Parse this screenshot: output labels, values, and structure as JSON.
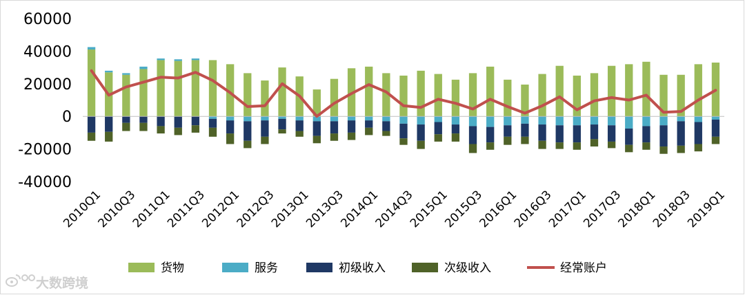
{
  "chart_data": {
    "type": "bar",
    "stacked": true,
    "categories": [
      "2010Q1",
      "2010Q2",
      "2010Q3",
      "2010Q4",
      "2011Q1",
      "2011Q2",
      "2011Q3",
      "2011Q4",
      "2012Q1",
      "2012Q2",
      "2012Q3",
      "2012Q4",
      "2013Q1",
      "2013Q2",
      "2013Q3",
      "2013Q4",
      "2014Q1",
      "2014Q2",
      "2014Q3",
      "2014Q4",
      "2015Q1",
      "2015Q2",
      "2015Q3",
      "2015Q4",
      "2016Q1",
      "2016Q2",
      "2016Q3",
      "2016Q4",
      "2017Q1",
      "2017Q2",
      "2017Q3",
      "2017Q4",
      "2018Q1",
      "2018Q2",
      "2018Q3",
      "2018Q4",
      "2019Q1"
    ],
    "tick_labels": [
      "2010Q1",
      "2010Q3",
      "2011Q1",
      "2011Q3",
      "2012Q1",
      "2012Q3",
      "2013Q1",
      "2013Q3",
      "2014Q1",
      "2014Q3",
      "2015Q1",
      "2015Q3",
      "2016Q1",
      "2016Q3",
      "2017Q1",
      "2017Q3",
      "2018Q1",
      "2018Q3",
      "2019Q1"
    ],
    "ylim": [
      -40000,
      60000
    ],
    "yticks": [
      "60000",
      "40000",
      "20000",
      "0",
      "-20000",
      "-40000"
    ],
    "series": [
      {
        "name": "货物",
        "type": "bar",
        "color": "#9BBB59",
        "values": [
          41000,
          27000,
          25500,
          29000,
          34500,
          34000,
          34500,
          34500,
          32000,
          26500,
          22000,
          30000,
          24500,
          16500,
          23000,
          29500,
          30500,
          26500,
          25000,
          28000,
          26000,
          22500,
          26500,
          30500,
          22500,
          19500,
          26000,
          31000,
          25000,
          26500,
          31000,
          32000,
          33500,
          25500,
          25500,
          32000,
          33000
        ]
      },
      {
        "name": "服务",
        "type": "bar",
        "color": "#4BACC6",
        "values": [
          1500,
          1000,
          1000,
          1500,
          1000,
          1000,
          1000,
          -1500,
          -2500,
          -3000,
          -2500,
          -1500,
          -2500,
          -3000,
          -3000,
          -2500,
          -2500,
          -3000,
          -4500,
          -5000,
          -3500,
          -5000,
          -6000,
          -6500,
          -5500,
          -4500,
          -5000,
          -5500,
          -5500,
          -5000,
          -5500,
          -7500,
          -6000,
          -5500,
          -3000,
          -3500,
          -2000
        ]
      },
      {
        "name": "初级收入",
        "type": "bar",
        "color": "#1F3864",
        "values": [
          -10000,
          -9500,
          -4000,
          -4000,
          -6000,
          -7000,
          -5500,
          -5500,
          -8000,
          -12000,
          -10000,
          -6500,
          -6500,
          -9000,
          -7500,
          -7500,
          -4500,
          -6000,
          -9000,
          -10000,
          -7500,
          -5500,
          -11000,
          -9500,
          -7000,
          -8000,
          -10000,
          -10500,
          -10500,
          -9000,
          -10000,
          -10000,
          -10000,
          -13000,
          -15000,
          -13500,
          -10500
        ]
      },
      {
        "name": "次级收入",
        "type": "bar",
        "color": "#4F6228",
        "values": [
          -5000,
          -6000,
          -5000,
          -5000,
          -4500,
          -4500,
          -4500,
          -5500,
          -6500,
          -4500,
          -4500,
          -2500,
          -3500,
          -4500,
          -4500,
          -4500,
          -4500,
          -3000,
          -4000,
          -5000,
          -4500,
          -5000,
          -5500,
          -4500,
          -5000,
          -4500,
          -5000,
          -4000,
          -4500,
          -4500,
          -4000,
          -4500,
          -4500,
          -4500,
          -4500,
          -4500,
          -4500
        ]
      },
      {
        "name": "经常账户",
        "type": "line",
        "color": "#C0504D",
        "values": [
          28000,
          13000,
          18000,
          21000,
          24000,
          23500,
          27000,
          22000,
          14500,
          6000,
          6500,
          20000,
          12500,
          0,
          8000,
          14000,
          19500,
          15000,
          6500,
          5500,
          10500,
          8000,
          4500,
          10500,
          6000,
          2000,
          6500,
          12000,
          4000,
          9500,
          11500,
          10000,
          13000,
          2500,
          3000,
          10000,
          16000
        ]
      }
    ]
  },
  "legend": {
    "items": [
      {
        "label": "货物",
        "marker": "square",
        "color": "#9BBB59"
      },
      {
        "label": "服务",
        "marker": "square",
        "color": "#4BACC6"
      },
      {
        "label": "初级收入",
        "marker": "square",
        "color": "#1F3864"
      },
      {
        "label": "次级收入",
        "marker": "square",
        "color": "#4F6228"
      },
      {
        "label": "经常账户",
        "marker": "line",
        "color": "#C0504D"
      }
    ]
  },
  "watermark": {
    "text": "大数跨境",
    "icon": "weibo-logo-icon"
  }
}
